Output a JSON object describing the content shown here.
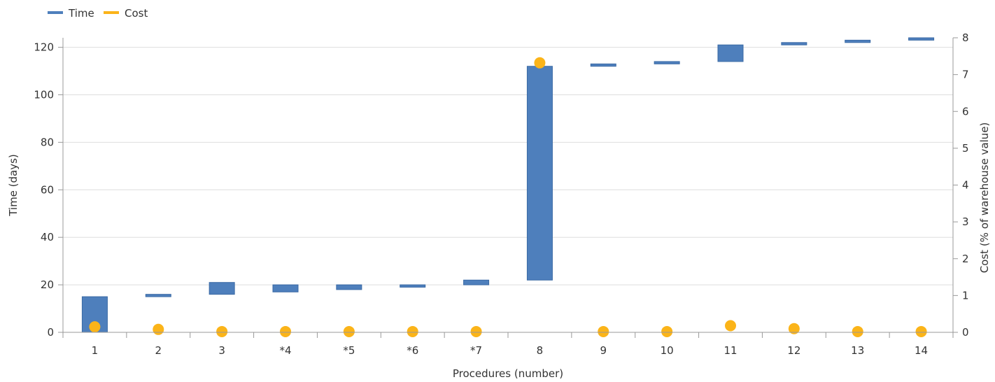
{
  "chart_data": {
    "type": "bar",
    "categories": [
      "1",
      "2",
      "3",
      "*4",
      "*5",
      "*6",
      "*7",
      "8",
      "9",
      "10",
      "11",
      "12",
      "13",
      "14"
    ],
    "series": [
      {
        "name": "Time",
        "kind": "floating-bar",
        "axis": "left",
        "color": "#4e7fbc",
        "start": [
          0,
          15,
          16,
          17,
          18,
          19,
          20,
          22,
          112,
          113,
          114,
          121,
          122,
          123
        ],
        "end": [
          15,
          16,
          21,
          20,
          20,
          20,
          22,
          112,
          113,
          114,
          121,
          122,
          123,
          124
        ]
      },
      {
        "name": "Cost",
        "kind": "scatter",
        "axis": "right",
        "color": "#fbb419",
        "values": [
          0.15,
          0.08,
          0.02,
          0.02,
          0.02,
          0.02,
          0.02,
          7.32,
          0.02,
          0.02,
          0.18,
          0.1,
          0.02,
          0.02
        ]
      }
    ],
    "xlabel": "Procedures (number)",
    "ylabel": "Time (days)",
    "y2label": "Cost (% of warehouse value)",
    "ylim": [
      0,
      124
    ],
    "y2lim": [
      0,
      8
    ],
    "yticks": [
      0,
      20,
      40,
      60,
      80,
      100,
      120
    ],
    "y2ticks": [
      0,
      1,
      2,
      3,
      4,
      5,
      6,
      7,
      8
    ],
    "grid": true,
    "legend_position": "top-left"
  }
}
